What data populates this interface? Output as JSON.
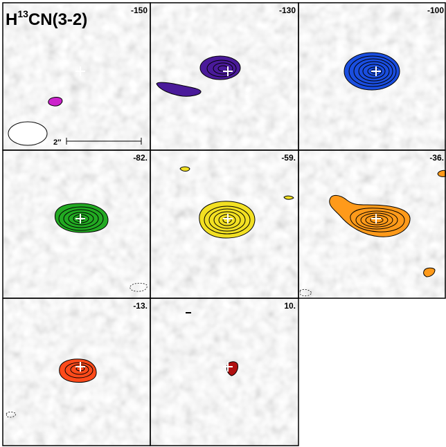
{
  "figure": {
    "molecule": "H",
    "isotope": "13",
    "species": "CN(3-2)",
    "scale_bar_label": "2″"
  },
  "panels": [
    {
      "velocity": "-150",
      "color": "#cc22cc"
    },
    {
      "velocity": "-130",
      "color": "#4a1a9a"
    },
    {
      "velocity": "-100",
      "color": "#1a4ee0"
    },
    {
      "velocity": "-82.",
      "color": "#22aa22"
    },
    {
      "velocity": "-59.",
      "color": "#f2e022"
    },
    {
      "velocity": "-36.",
      "color": "#ff9a1a"
    },
    {
      "velocity": "-13.",
      "color": "#ff4a1a"
    },
    {
      "velocity": "10.",
      "color": "#b01010"
    }
  ]
}
